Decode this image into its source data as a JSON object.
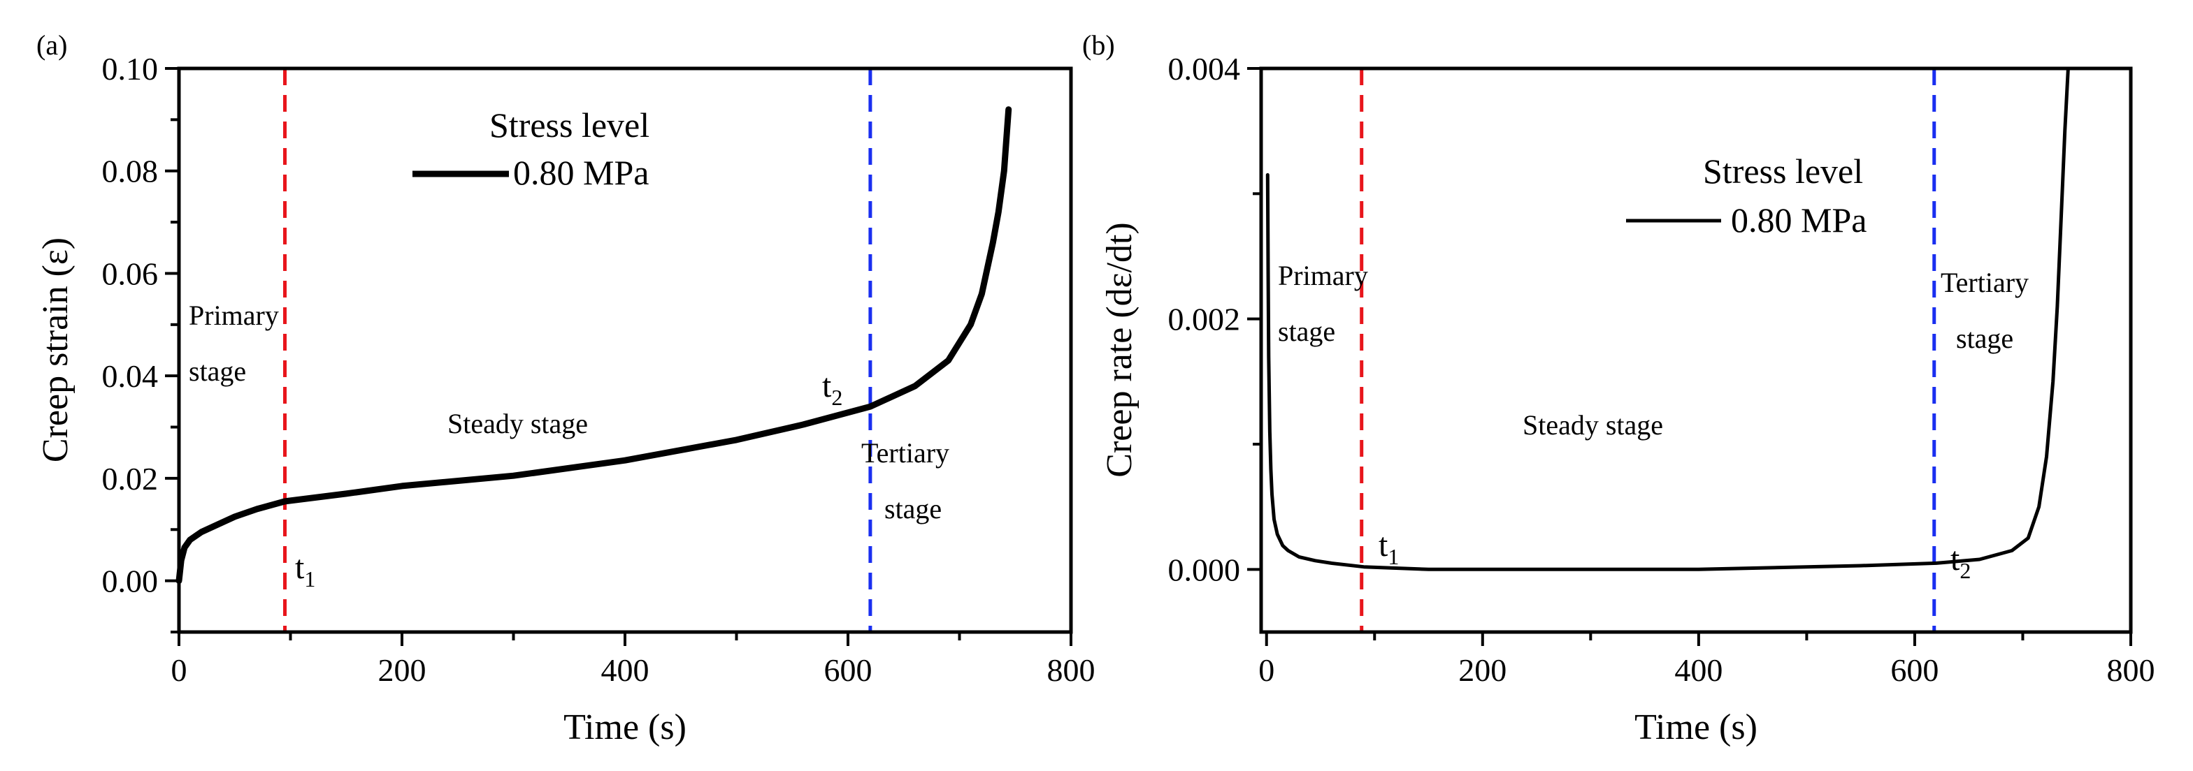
{
  "chart_data": [
    {
      "type": "line",
      "panel_label": "(a)",
      "xlabel": "Time (s)",
      "ylabel": "Creep strain (ε)",
      "xlim": [
        0,
        800
      ],
      "ylim": [
        -0.01,
        0.1
      ],
      "x_ticks": [
        0,
        200,
        400,
        600,
        800
      ],
      "x_tick_labels": [
        "0",
        "200",
        "400",
        "600",
        "800"
      ],
      "y_ticks": [
        0.0,
        0.02,
        0.04,
        0.06,
        0.08,
        0.1
      ],
      "y_tick_labels": [
        "0.00",
        "0.02",
        "0.04",
        "0.06",
        "0.08",
        "0.10"
      ],
      "grid": false,
      "legend": {
        "title": "Stress level",
        "entry": "0.80 MPa",
        "placement": "top-center"
      },
      "series": [
        {
          "name": "0.80 MPa",
          "color": "#000000",
          "x": [
            0,
            2,
            5,
            10,
            20,
            35,
            50,
            70,
            95,
            150,
            200,
            300,
            400,
            500,
            560,
            620,
            660,
            690,
            710,
            720,
            730,
            735,
            740,
            742,
            744
          ],
          "y": [
            0,
            0.004,
            0.0065,
            0.008,
            0.0095,
            0.011,
            0.0125,
            0.014,
            0.0155,
            0.017,
            0.0185,
            0.0205,
            0.0235,
            0.0275,
            0.0305,
            0.034,
            0.038,
            0.043,
            0.05,
            0.056,
            0.066,
            0.072,
            0.08,
            0.086,
            0.092
          ]
        }
      ],
      "reference_lines": [
        {
          "name": "t1",
          "x": 95,
          "color": "#e8151b"
        },
        {
          "name": "t2",
          "x": 620,
          "color": "#1a2ff0"
        }
      ],
      "marker_labels": [
        {
          "name": "t1",
          "base": "t",
          "sub": "1"
        },
        {
          "name": "t2",
          "base": "t",
          "sub": "2"
        }
      ],
      "annotations": [
        {
          "name": "primary",
          "lines": [
            "Primary",
            "stage"
          ]
        },
        {
          "name": "steady",
          "lines": [
            "Steady stage"
          ]
        },
        {
          "name": "tertiary",
          "lines": [
            "Tertiary",
            "stage"
          ]
        }
      ]
    },
    {
      "type": "line",
      "panel_label": "(b)",
      "xlabel": "Time (s)",
      "ylabel": "Creep rate (dε/dt)",
      "xlim": [
        -5,
        800
      ],
      "ylim": [
        -0.0005,
        0.004
      ],
      "x_ticks": [
        0,
        200,
        400,
        600,
        800
      ],
      "x_tick_labels": [
        "0",
        "200",
        "400",
        "600",
        "800"
      ],
      "y_ticks": [
        0.0,
        0.002,
        0.004
      ],
      "y_tick_labels": [
        "0.000",
        "0.002",
        "0.004"
      ],
      "grid": false,
      "legend": {
        "title": "Stress level",
        "entry": "0.80 MPa",
        "placement": "top-right"
      },
      "series": [
        {
          "name": "0.80 MPa",
          "color": "#000000",
          "x": [
            1,
            1.5,
            2,
            3,
            4,
            5,
            7,
            10,
            15,
            20,
            30,
            45,
            60,
            90,
            150,
            250,
            400,
            550,
            620,
            660,
            690,
            705,
            715,
            722,
            728,
            732,
            736,
            739,
            742
          ],
          "y": [
            0.00315,
            0.0024,
            0.0017,
            0.0011,
            0.0008,
            0.0006,
            0.0004,
            0.00028,
            0.00019,
            0.00015,
            0.0001,
            7e-05,
            5e-05,
            2e-05,
            0.0,
            0.0,
            0.0,
            3e-05,
            5e-05,
            8e-05,
            0.00015,
            0.00025,
            0.0005,
            0.0009,
            0.0015,
            0.0021,
            0.0029,
            0.0035,
            0.004
          ]
        }
      ],
      "reference_lines": [
        {
          "name": "t1",
          "x": 88,
          "color": "#e8151b"
        },
        {
          "name": "t2",
          "x": 618,
          "color": "#1a2ff0"
        }
      ],
      "marker_labels": [
        {
          "name": "t1",
          "base": "t",
          "sub": "1"
        },
        {
          "name": "t2",
          "base": "t",
          "sub": "2"
        }
      ],
      "annotations": [
        {
          "name": "primary",
          "lines": [
            "Primary",
            "stage"
          ]
        },
        {
          "name": "steady",
          "lines": [
            "Steady stage"
          ]
        },
        {
          "name": "tertiary",
          "lines": [
            "Tertiary",
            "stage"
          ]
        }
      ]
    }
  ]
}
